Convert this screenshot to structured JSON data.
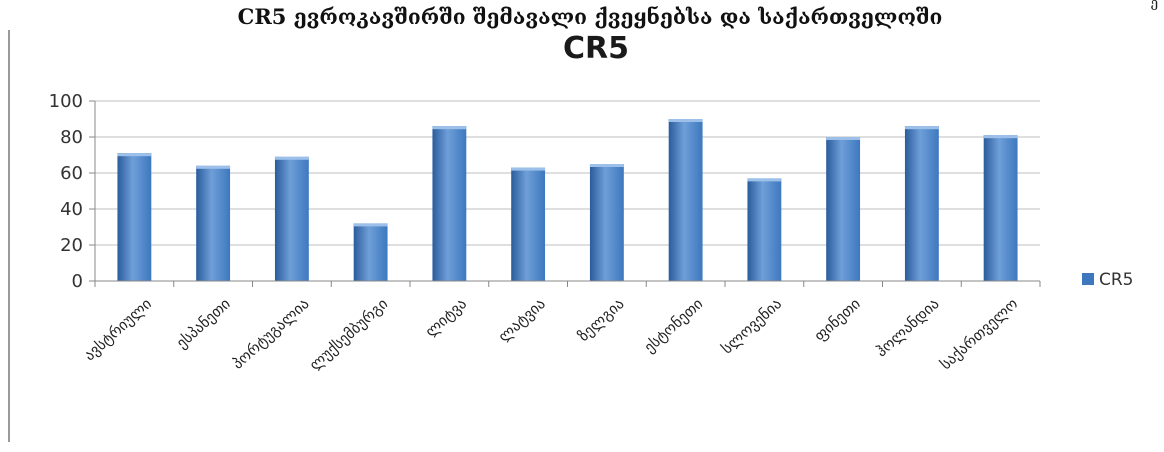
{
  "page": {
    "heading": "CR5 ევროკავშირში შემავალი ქვეყნებსა და საქართველოში",
    "corner_mark": "ე"
  },
  "chart_data": {
    "type": "bar",
    "title": "CR5",
    "xlabel": "",
    "ylabel": "",
    "categories": [
      "ავსტრიული",
      "ესპანეთი",
      "პორტუგალია",
      "ლუქსემბურგი",
      "ლიტვა",
      "ლატვია",
      "ზელგია",
      "ესტონეთი",
      "სლოვენია",
      "ფინეთი",
      "ჰოლანდია",
      "საქართველო"
    ],
    "series": [
      {
        "name": "CR5",
        "values": [
          71,
          64,
          69,
          32,
          86,
          63,
          65,
          90,
          57,
          80,
          86,
          81
        ]
      }
    ],
    "ylim": [
      0,
      100
    ],
    "yticks": [
      0,
      20,
      40,
      60,
      80,
      100
    ],
    "grid": true,
    "legend": "right",
    "colors": {
      "bar": "#3d78bf",
      "bar_light": "#6f9fd8",
      "bar_dark": "#2a5c9c",
      "grid": "#bfbfbf"
    }
  }
}
